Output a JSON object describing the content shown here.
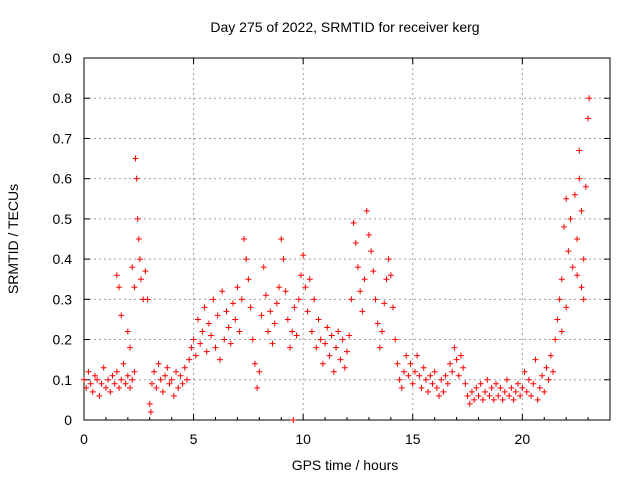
{
  "chart_data": {
    "type": "scatter",
    "title": "Day 275 of 2022, SRMTID for receiver kerg",
    "xlabel": "GPS time / hours",
    "ylabel": "SRMTID / TECUs",
    "xlim": [
      0,
      24
    ],
    "ylim": [
      0,
      0.9
    ],
    "xticks": [
      0,
      5,
      10,
      15,
      20
    ],
    "yticks": [
      0,
      0.1,
      0.2,
      0.3,
      0.4,
      0.5,
      0.6,
      0.7,
      0.8,
      0.9
    ],
    "grid": true,
    "marker": "+",
    "color": "#ff0000",
    "series": [
      {
        "name": "SRMTID",
        "points": [
          [
            0.0,
            0.1
          ],
          [
            0.1,
            0.08
          ],
          [
            0.2,
            0.12
          ],
          [
            0.3,
            0.09
          ],
          [
            0.4,
            0.07
          ],
          [
            0.5,
            0.11
          ],
          [
            0.6,
            0.1
          ],
          [
            0.7,
            0.06
          ],
          [
            0.8,
            0.09
          ],
          [
            0.9,
            0.13
          ],
          [
            1.0,
            0.08
          ],
          [
            1.1,
            0.1
          ],
          [
            1.2,
            0.07
          ],
          [
            1.3,
            0.11
          ],
          [
            1.4,
            0.09
          ],
          [
            1.5,
            0.12
          ],
          [
            1.6,
            0.08
          ],
          [
            1.7,
            0.1
          ],
          [
            1.8,
            0.14
          ],
          [
            1.9,
            0.09
          ],
          [
            2.0,
            0.11
          ],
          [
            2.1,
            0.08
          ],
          [
            2.2,
            0.1
          ],
          [
            2.3,
            0.12
          ],
          [
            2.35,
            0.65
          ],
          [
            2.4,
            0.6
          ],
          [
            2.45,
            0.5
          ],
          [
            2.5,
            0.45
          ],
          [
            2.55,
            0.4
          ],
          [
            2.6,
            0.35
          ],
          [
            2.2,
            0.38
          ],
          [
            2.3,
            0.33
          ],
          [
            2.7,
            0.3
          ],
          [
            2.8,
            0.37
          ],
          [
            2.9,
            0.3
          ],
          [
            2.0,
            0.22
          ],
          [
            2.1,
            0.18
          ],
          [
            1.5,
            0.36
          ],
          [
            1.6,
            0.33
          ],
          [
            1.7,
            0.26
          ],
          [
            3.0,
            0.04
          ],
          [
            3.05,
            0.02
          ],
          [
            3.1,
            0.09
          ],
          [
            3.2,
            0.12
          ],
          [
            3.3,
            0.08
          ],
          [
            3.4,
            0.14
          ],
          [
            3.5,
            0.1
          ],
          [
            3.6,
            0.07
          ],
          [
            3.7,
            0.11
          ],
          [
            3.8,
            0.13
          ],
          [
            3.9,
            0.09
          ],
          [
            4.0,
            0.1
          ],
          [
            4.1,
            0.06
          ],
          [
            4.2,
            0.12
          ],
          [
            4.3,
            0.08
          ],
          [
            4.4,
            0.11
          ],
          [
            4.5,
            0.09
          ],
          [
            4.6,
            0.13
          ],
          [
            4.7,
            0.1
          ],
          [
            4.8,
            0.15
          ],
          [
            4.9,
            0.18
          ],
          [
            5.0,
            0.2
          ],
          [
            5.1,
            0.16
          ],
          [
            5.2,
            0.25
          ],
          [
            5.3,
            0.19
          ],
          [
            5.4,
            0.22
          ],
          [
            5.5,
            0.28
          ],
          [
            5.6,
            0.17
          ],
          [
            5.7,
            0.24
          ],
          [
            5.8,
            0.21
          ],
          [
            5.9,
            0.3
          ],
          [
            6.0,
            0.18
          ],
          [
            6.1,
            0.26
          ],
          [
            6.2,
            0.15
          ],
          [
            6.3,
            0.32
          ],
          [
            6.4,
            0.2
          ],
          [
            6.5,
            0.27
          ],
          [
            6.6,
            0.23
          ],
          [
            6.7,
            0.19
          ],
          [
            6.8,
            0.29
          ],
          [
            6.9,
            0.25
          ],
          [
            7.0,
            0.33
          ],
          [
            7.1,
            0.22
          ],
          [
            7.2,
            0.3
          ],
          [
            7.3,
            0.45
          ],
          [
            7.4,
            0.4
          ],
          [
            7.5,
            0.35
          ],
          [
            7.6,
            0.28
          ],
          [
            7.7,
            0.2
          ],
          [
            7.8,
            0.14
          ],
          [
            7.9,
            0.08
          ],
          [
            8.0,
            0.12
          ],
          [
            8.1,
            0.26
          ],
          [
            8.2,
            0.38
          ],
          [
            8.3,
            0.31
          ],
          [
            8.4,
            0.22
          ],
          [
            8.5,
            0.27
          ],
          [
            8.6,
            0.19
          ],
          [
            8.7,
            0.24
          ],
          [
            8.8,
            0.29
          ],
          [
            8.9,
            0.33
          ],
          [
            9.0,
            0.45
          ],
          [
            9.1,
            0.4
          ],
          [
            9.2,
            0.32
          ],
          [
            9.3,
            0.25
          ],
          [
            9.4,
            0.18
          ],
          [
            9.5,
            0.22
          ],
          [
            9.55,
            0.0
          ],
          [
            9.6,
            0.28
          ],
          [
            9.7,
            0.21
          ],
          [
            9.8,
            0.3
          ],
          [
            9.9,
            0.36
          ],
          [
            10.0,
            0.41
          ],
          [
            10.1,
            0.33
          ],
          [
            10.2,
            0.27
          ],
          [
            10.3,
            0.35
          ],
          [
            10.4,
            0.22
          ],
          [
            10.5,
            0.3
          ],
          [
            10.6,
            0.18
          ],
          [
            10.7,
            0.25
          ],
          [
            10.8,
            0.2
          ],
          [
            10.9,
            0.14
          ],
          [
            11.0,
            0.19
          ],
          [
            11.1,
            0.23
          ],
          [
            11.2,
            0.16
          ],
          [
            11.3,
            0.21
          ],
          [
            11.4,
            0.12
          ],
          [
            11.5,
            0.18
          ],
          [
            11.6,
            0.22
          ],
          [
            11.7,
            0.15
          ],
          [
            11.8,
            0.2
          ],
          [
            11.9,
            0.13
          ],
          [
            12.0,
            0.17
          ],
          [
            12.1,
            0.21
          ],
          [
            12.2,
            0.3
          ],
          [
            12.3,
            0.49
          ],
          [
            12.4,
            0.44
          ],
          [
            12.5,
            0.38
          ],
          [
            12.6,
            0.32
          ],
          [
            12.7,
            0.27
          ],
          [
            12.8,
            0.35
          ],
          [
            12.9,
            0.52
          ],
          [
            13.0,
            0.46
          ],
          [
            13.1,
            0.42
          ],
          [
            13.2,
            0.37
          ],
          [
            13.3,
            0.3
          ],
          [
            13.4,
            0.24
          ],
          [
            13.5,
            0.18
          ],
          [
            13.6,
            0.22
          ],
          [
            13.7,
            0.29
          ],
          [
            13.8,
            0.35
          ],
          [
            13.9,
            0.4
          ],
          [
            14.0,
            0.36
          ],
          [
            14.1,
            0.28
          ],
          [
            14.2,
            0.2
          ],
          [
            14.3,
            0.14
          ],
          [
            14.4,
            0.1
          ],
          [
            14.5,
            0.08
          ],
          [
            14.6,
            0.12
          ],
          [
            14.7,
            0.16
          ],
          [
            14.8,
            0.11
          ],
          [
            14.9,
            0.14
          ],
          [
            15.0,
            0.09
          ],
          [
            15.1,
            0.12
          ],
          [
            15.2,
            0.16
          ],
          [
            15.3,
            0.11
          ],
          [
            15.4,
            0.08
          ],
          [
            15.5,
            0.13
          ],
          [
            15.6,
            0.1
          ],
          [
            15.7,
            0.07
          ],
          [
            15.8,
            0.11
          ],
          [
            15.9,
            0.09
          ],
          [
            16.0,
            0.12
          ],
          [
            16.1,
            0.08
          ],
          [
            16.2,
            0.06
          ],
          [
            16.3,
            0.1
          ],
          [
            16.4,
            0.07
          ],
          [
            16.5,
            0.11
          ],
          [
            16.6,
            0.09
          ],
          [
            16.7,
            0.14
          ],
          [
            16.8,
            0.12
          ],
          [
            16.9,
            0.18
          ],
          [
            17.0,
            0.15
          ],
          [
            17.1,
            0.11
          ],
          [
            17.2,
            0.16
          ],
          [
            17.3,
            0.13
          ],
          [
            17.4,
            0.09
          ],
          [
            17.5,
            0.06
          ],
          [
            17.6,
            0.04
          ],
          [
            17.7,
            0.07
          ],
          [
            17.8,
            0.05
          ],
          [
            17.9,
            0.08
          ],
          [
            18.0,
            0.06
          ],
          [
            18.1,
            0.09
          ],
          [
            18.2,
            0.05
          ],
          [
            18.3,
            0.07
          ],
          [
            18.4,
            0.1
          ],
          [
            18.5,
            0.06
          ],
          [
            18.6,
            0.08
          ],
          [
            18.7,
            0.05
          ],
          [
            18.8,
            0.09
          ],
          [
            18.9,
            0.06
          ],
          [
            19.0,
            0.08
          ],
          [
            19.1,
            0.05
          ],
          [
            19.2,
            0.07
          ],
          [
            19.3,
            0.1
          ],
          [
            19.4,
            0.06
          ],
          [
            19.5,
            0.08
          ],
          [
            19.6,
            0.05
          ],
          [
            19.7,
            0.07
          ],
          [
            19.8,
            0.09
          ],
          [
            19.9,
            0.06
          ],
          [
            20.0,
            0.08
          ],
          [
            20.1,
            0.12
          ],
          [
            20.2,
            0.07
          ],
          [
            20.3,
            0.1
          ],
          [
            20.4,
            0.06
          ],
          [
            20.5,
            0.09
          ],
          [
            20.6,
            0.15
          ],
          [
            20.7,
            0.05
          ],
          [
            20.8,
            0.08
          ],
          [
            20.9,
            0.11
          ],
          [
            21.0,
            0.07
          ],
          [
            21.1,
            0.13
          ],
          [
            21.2,
            0.1
          ],
          [
            21.3,
            0.16
          ],
          [
            21.4,
            0.12
          ],
          [
            21.5,
            0.2
          ],
          [
            21.6,
            0.25
          ],
          [
            21.7,
            0.3
          ],
          [
            21.8,
            0.35
          ],
          [
            21.9,
            0.48
          ],
          [
            22.0,
            0.55
          ],
          [
            22.1,
            0.42
          ],
          [
            22.2,
            0.5
          ],
          [
            22.3,
            0.38
          ],
          [
            22.4,
            0.56
          ],
          [
            22.5,
            0.45
          ],
          [
            22.6,
            0.6
          ],
          [
            22.7,
            0.52
          ],
          [
            22.8,
            0.4
          ],
          [
            22.9,
            0.58
          ],
          [
            23.0,
            0.75
          ],
          [
            23.05,
            0.8
          ],
          [
            22.6,
            0.67
          ],
          [
            22.7,
            0.33
          ],
          [
            22.8,
            0.3
          ],
          [
            22.5,
            0.36
          ],
          [
            22.0,
            0.28
          ],
          [
            21.8,
            0.22
          ]
        ]
      }
    ]
  }
}
